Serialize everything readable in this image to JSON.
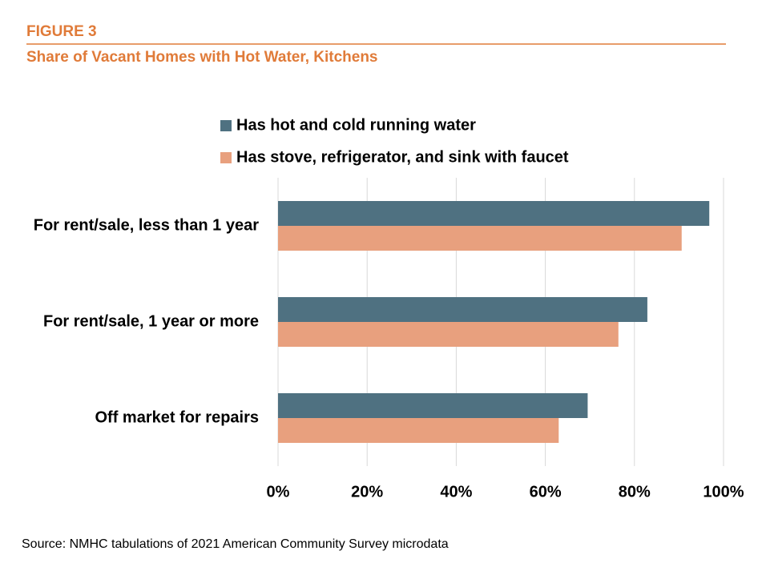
{
  "chart_data": {
    "type": "bar",
    "orientation": "horizontal",
    "figure_label": "FIGURE 3",
    "title": "Share of Vacant Homes with Hot Water, Kitchens",
    "source": "Source: NMHC tabulations of 2021 American Community Survey microdata",
    "categories": [
      "For rent/sale, less than 1 year",
      "For rent/sale, 1 year or more",
      "Off market for repairs"
    ],
    "series": [
      {
        "name": "Has hot and cold running water",
        "color": "#4f7181",
        "values": [
          96.8,
          82.9,
          69.5
        ]
      },
      {
        "name": "Has stove, refrigerator, and sink with faucet",
        "color": "#e8a07e",
        "values": [
          90.6,
          76.4,
          63
        ]
      }
    ],
    "xlim": [
      0,
      100
    ],
    "xticks": [
      {
        "value": 0,
        "label": "0%"
      },
      {
        "value": 20,
        "label": "20%"
      },
      {
        "value": 40,
        "label": "40%"
      },
      {
        "value": 60,
        "label": "60%"
      },
      {
        "value": 80,
        "label": "80%"
      },
      {
        "value": 100,
        "label": "100%"
      }
    ],
    "grid": true
  }
}
